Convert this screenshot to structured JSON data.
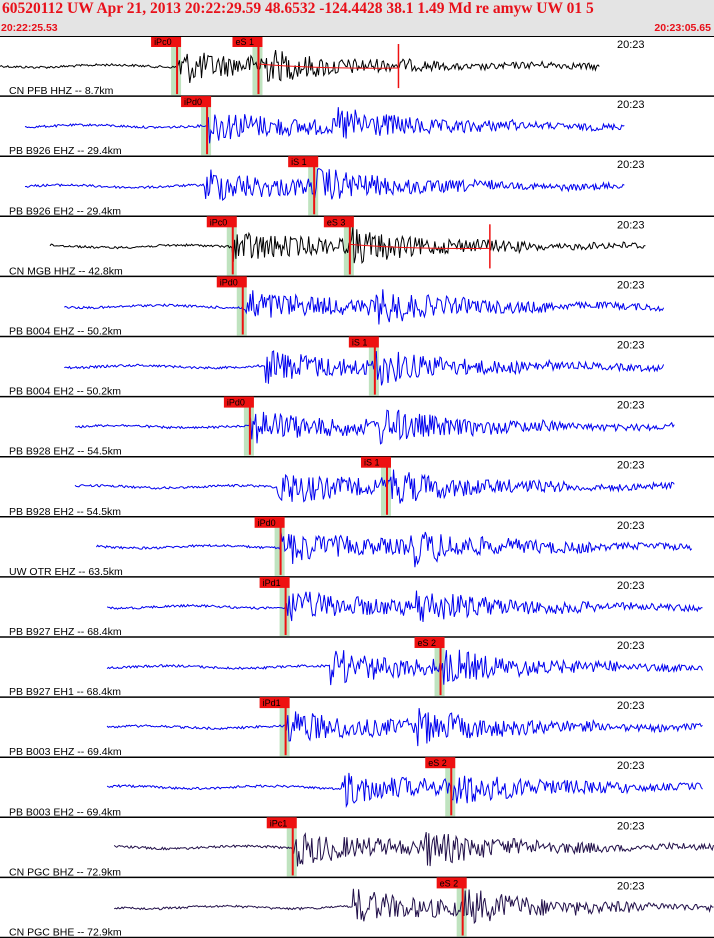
{
  "header": {
    "title": "60520112 UW Apr 21, 2013 20:22:29.59    48.6532 -124.4428 38.1 1.49 Md re amyw UW 01   5",
    "start_time": "20:22:25.53",
    "end_time": "20:23:05.65",
    "minute_label": "20:23"
  },
  "colors": {
    "pick_flag": "#ee1111",
    "pick_line": "#ee1111",
    "theory_band": "#bfe3bf",
    "trace_hh": "#000000",
    "trace_eh": "#0000ee",
    "trace_bh": "#22104a",
    "divider": "#000000"
  },
  "traces": [
    {
      "label": "CN PFB HHZ -- 8.7km",
      "color": "trace_hh",
      "start": 0.0,
      "end": 0.84,
      "pick_p": {
        "label": "iPc0",
        "x": 0.248
      },
      "pick_s": {
        "label": "eS 1",
        "x": 0.362
      },
      "coda": true
    },
    {
      "label": "PB B926 EHZ -- 29.4km",
      "color": "trace_eh",
      "start": 0.035,
      "end": 0.875,
      "pick_p": {
        "label": "iPd0",
        "x": 0.29
      }
    },
    {
      "label": "PB B926 EH2 -- 29.4km",
      "color": "trace_eh",
      "start": 0.035,
      "end": 0.875,
      "pick_s": {
        "label": "iS 1",
        "x": 0.44
      }
    },
    {
      "label": "CN MGB HHZ -- 42.8km",
      "color": "trace_hh",
      "start": 0.07,
      "end": 0.905,
      "pick_p": {
        "label": "iPc0",
        "x": 0.326
      },
      "pick_s": {
        "label": "eS 3",
        "x": 0.49
      },
      "coda": true
    },
    {
      "label": "PB B004 EHZ -- 50.2km",
      "color": "trace_eh",
      "start": 0.09,
      "end": 0.93,
      "pick_p": {
        "label": "iPd0",
        "x": 0.34
      }
    },
    {
      "label": "PB B004 EH2 -- 50.2km",
      "color": "trace_eh",
      "start": 0.09,
      "end": 0.93,
      "pick_s": {
        "label": "iS 1",
        "x": 0.525
      }
    },
    {
      "label": "PB B928 EHZ -- 54.5km",
      "color": "trace_eh",
      "start": 0.105,
      "end": 0.945,
      "pick_p": {
        "label": "iPd0",
        "x": 0.35
      }
    },
    {
      "label": "PB B928 EH2 -- 54.5km",
      "color": "trace_eh",
      "start": 0.105,
      "end": 0.945,
      "pick_s": {
        "label": "iS 1",
        "x": 0.542
      }
    },
    {
      "label": "UW OTR EHZ -- 63.5km",
      "color": "trace_eh",
      "start": 0.135,
      "end": 0.97,
      "pick_p": {
        "label": "iPd0",
        "x": 0.393
      },
      "coda": true
    },
    {
      "label": "PB B927 EHZ -- 68.4km",
      "color": "trace_eh",
      "start": 0.15,
      "end": 0.985,
      "pick_p": {
        "label": "iPd1",
        "x": 0.4
      }
    },
    {
      "label": "PB B927 EH1 -- 68.4km",
      "color": "trace_eh",
      "start": 0.15,
      "end": 0.985,
      "pick_s": {
        "label": "eS 2",
        "x": 0.617
      }
    },
    {
      "label": "PB B003 EHZ -- 69.4km",
      "color": "trace_eh",
      "start": 0.15,
      "end": 0.985,
      "pick_p": {
        "label": "iPd1",
        "x": 0.4
      }
    },
    {
      "label": "PB B003 EH2 -- 69.4km",
      "color": "trace_eh",
      "start": 0.15,
      "end": 0.985,
      "pick_s": {
        "label": "eS 2",
        "x": 0.632
      }
    },
    {
      "label": "CN PGC BHZ -- 72.9km",
      "color": "trace_bh",
      "start": 0.16,
      "end": 1.0,
      "pick_p": {
        "label": "iPc1",
        "x": 0.41
      },
      "coda": true
    },
    {
      "label": "CN PGC BHE -- 72.9km",
      "color": "trace_bh",
      "start": 0.16,
      "end": 1.0,
      "pick_s": {
        "label": "eS 2",
        "x": 0.648
      }
    }
  ]
}
